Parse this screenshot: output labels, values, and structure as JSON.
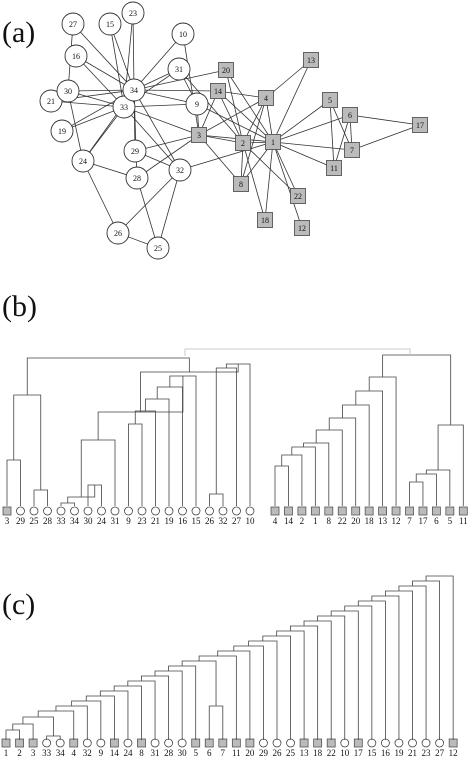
{
  "panels": {
    "a": {
      "label": "(a)"
    },
    "b": {
      "label": "(b)"
    },
    "c": {
      "label": "(c)"
    }
  },
  "network": {
    "nodes": [
      {
        "id": "1",
        "group": "square"
      },
      {
        "id": "2",
        "group": "square"
      },
      {
        "id": "3",
        "group": "square"
      },
      {
        "id": "4",
        "group": "square"
      },
      {
        "id": "5",
        "group": "square"
      },
      {
        "id": "6",
        "group": "square"
      },
      {
        "id": "7",
        "group": "square"
      },
      {
        "id": "8",
        "group": "square"
      },
      {
        "id": "9",
        "group": "circle"
      },
      {
        "id": "10",
        "group": "circle"
      },
      {
        "id": "11",
        "group": "square"
      },
      {
        "id": "12",
        "group": "square"
      },
      {
        "id": "13",
        "group": "square"
      },
      {
        "id": "14",
        "group": "square"
      },
      {
        "id": "15",
        "group": "circle"
      },
      {
        "id": "16",
        "group": "circle"
      },
      {
        "id": "17",
        "group": "square"
      },
      {
        "id": "18",
        "group": "square"
      },
      {
        "id": "19",
        "group": "circle"
      },
      {
        "id": "20",
        "group": "square"
      },
      {
        "id": "21",
        "group": "circle"
      },
      {
        "id": "22",
        "group": "square"
      },
      {
        "id": "23",
        "group": "circle"
      },
      {
        "id": "24",
        "group": "circle"
      },
      {
        "id": "25",
        "group": "circle"
      },
      {
        "id": "26",
        "group": "circle"
      },
      {
        "id": "27",
        "group": "circle"
      },
      {
        "id": "28",
        "group": "circle"
      },
      {
        "id": "29",
        "group": "circle"
      },
      {
        "id": "30",
        "group": "circle"
      },
      {
        "id": "31",
        "group": "circle"
      },
      {
        "id": "32",
        "group": "circle"
      },
      {
        "id": "33",
        "group": "circle"
      },
      {
        "id": "34",
        "group": "circle"
      }
    ],
    "edges": [
      [
        "1",
        "2"
      ],
      [
        "1",
        "3"
      ],
      [
        "1",
        "4"
      ],
      [
        "1",
        "5"
      ],
      [
        "1",
        "6"
      ],
      [
        "1",
        "7"
      ],
      [
        "1",
        "8"
      ],
      [
        "1",
        "9"
      ],
      [
        "1",
        "11"
      ],
      [
        "1",
        "12"
      ],
      [
        "1",
        "13"
      ],
      [
        "1",
        "14"
      ],
      [
        "1",
        "18"
      ],
      [
        "1",
        "20"
      ],
      [
        "1",
        "22"
      ],
      [
        "1",
        "32"
      ],
      [
        "2",
        "3"
      ],
      [
        "2",
        "4"
      ],
      [
        "2",
        "8"
      ],
      [
        "2",
        "14"
      ],
      [
        "2",
        "18"
      ],
      [
        "2",
        "20"
      ],
      [
        "2",
        "22"
      ],
      [
        "2",
        "31"
      ],
      [
        "3",
        "4"
      ],
      [
        "3",
        "8"
      ],
      [
        "3",
        "9"
      ],
      [
        "3",
        "10"
      ],
      [
        "3",
        "14"
      ],
      [
        "3",
        "28"
      ],
      [
        "3",
        "29"
      ],
      [
        "3",
        "33"
      ],
      [
        "4",
        "8"
      ],
      [
        "4",
        "13"
      ],
      [
        "4",
        "14"
      ],
      [
        "5",
        "7"
      ],
      [
        "5",
        "11"
      ],
      [
        "6",
        "7"
      ],
      [
        "6",
        "11"
      ],
      [
        "6",
        "17"
      ],
      [
        "7",
        "17"
      ],
      [
        "9",
        "31"
      ],
      [
        "9",
        "33"
      ],
      [
        "9",
        "34"
      ],
      [
        "10",
        "34"
      ],
      [
        "14",
        "34"
      ],
      [
        "15",
        "33"
      ],
      [
        "15",
        "34"
      ],
      [
        "16",
        "33"
      ],
      [
        "16",
        "34"
      ],
      [
        "19",
        "33"
      ],
      [
        "19",
        "34"
      ],
      [
        "20",
        "34"
      ],
      [
        "21",
        "33"
      ],
      [
        "21",
        "34"
      ],
      [
        "23",
        "33"
      ],
      [
        "23",
        "34"
      ],
      [
        "24",
        "26"
      ],
      [
        "24",
        "28"
      ],
      [
        "24",
        "30"
      ],
      [
        "24",
        "33"
      ],
      [
        "24",
        "34"
      ],
      [
        "25",
        "26"
      ],
      [
        "25",
        "28"
      ],
      [
        "25",
        "32"
      ],
      [
        "26",
        "32"
      ],
      [
        "27",
        "30"
      ],
      [
        "27",
        "34"
      ],
      [
        "28",
        "34"
      ],
      [
        "29",
        "32"
      ],
      [
        "29",
        "34"
      ],
      [
        "30",
        "33"
      ],
      [
        "30",
        "34"
      ],
      [
        "31",
        "33"
      ],
      [
        "31",
        "34"
      ],
      [
        "32",
        "33"
      ],
      [
        "32",
        "34"
      ],
      [
        "33",
        "34"
      ]
    ]
  },
  "dendrogram_b": {
    "left_leaves": [
      {
        "label": "3",
        "shape": "square"
      },
      {
        "label": "29",
        "shape": "circle"
      },
      {
        "label": "25",
        "shape": "circle"
      },
      {
        "label": "28",
        "shape": "circle"
      },
      {
        "label": "33",
        "shape": "circle"
      },
      {
        "label": "34",
        "shape": "circle"
      },
      {
        "label": "30",
        "shape": "circle"
      },
      {
        "label": "24",
        "shape": "circle"
      },
      {
        "label": "31",
        "shape": "circle"
      },
      {
        "label": "9",
        "shape": "circle"
      },
      {
        "label": "23",
        "shape": "circle"
      },
      {
        "label": "21",
        "shape": "circle"
      },
      {
        "label": "19",
        "shape": "circle"
      },
      {
        "label": "16",
        "shape": "circle"
      },
      {
        "label": "15",
        "shape": "circle"
      },
      {
        "label": "26",
        "shape": "circle"
      },
      {
        "label": "32",
        "shape": "circle"
      },
      {
        "label": "27",
        "shape": "circle"
      },
      {
        "label": "10",
        "shape": "circle"
      }
    ],
    "right_leaves": [
      {
        "label": "4",
        "shape": "square"
      },
      {
        "label": "14",
        "shape": "square"
      },
      {
        "label": "2",
        "shape": "square"
      },
      {
        "label": "1",
        "shape": "square"
      },
      {
        "label": "8",
        "shape": "square"
      },
      {
        "label": "22",
        "shape": "square"
      },
      {
        "label": "20",
        "shape": "square"
      },
      {
        "label": "18",
        "shape": "square"
      },
      {
        "label": "13",
        "shape": "square"
      },
      {
        "label": "12",
        "shape": "square"
      },
      {
        "label": "7",
        "shape": "square"
      },
      {
        "label": "17",
        "shape": "square"
      },
      {
        "label": "6",
        "shape": "square"
      },
      {
        "label": "5",
        "shape": "square"
      },
      {
        "label": "11",
        "shape": "square"
      }
    ]
  },
  "dendrogram_c": {
    "leaves": [
      {
        "label": "1",
        "shape": "square"
      },
      {
        "label": "2",
        "shape": "square"
      },
      {
        "label": "3",
        "shape": "square"
      },
      {
        "label": "33",
        "shape": "circle"
      },
      {
        "label": "34",
        "shape": "circle"
      },
      {
        "label": "4",
        "shape": "square"
      },
      {
        "label": "32",
        "shape": "circle"
      },
      {
        "label": "9",
        "shape": "circle"
      },
      {
        "label": "14",
        "shape": "square"
      },
      {
        "label": "24",
        "shape": "circle"
      },
      {
        "label": "8",
        "shape": "square"
      },
      {
        "label": "31",
        "shape": "circle"
      },
      {
        "label": "28",
        "shape": "circle"
      },
      {
        "label": "30",
        "shape": "circle"
      },
      {
        "label": "5",
        "shape": "square"
      },
      {
        "label": "6",
        "shape": "square"
      },
      {
        "label": "7",
        "shape": "square"
      },
      {
        "label": "11",
        "shape": "square"
      },
      {
        "label": "20",
        "shape": "square"
      },
      {
        "label": "29",
        "shape": "circle"
      },
      {
        "label": "26",
        "shape": "circle"
      },
      {
        "label": "25",
        "shape": "circle"
      },
      {
        "label": "13",
        "shape": "square"
      },
      {
        "label": "18",
        "shape": "square"
      },
      {
        "label": "22",
        "shape": "square"
      },
      {
        "label": "10",
        "shape": "circle"
      },
      {
        "label": "17",
        "shape": "square"
      },
      {
        "label": "15",
        "shape": "circle"
      },
      {
        "label": "16",
        "shape": "circle"
      },
      {
        "label": "19",
        "shape": "circle"
      },
      {
        "label": "21",
        "shape": "circle"
      },
      {
        "label": "23",
        "shape": "circle"
      },
      {
        "label": "27",
        "shape": "circle"
      },
      {
        "label": "12",
        "shape": "square"
      }
    ]
  },
  "colors": {
    "square_fill": "#bbbbbb",
    "circle_fill": "#ffffff",
    "line": "#444444"
  }
}
